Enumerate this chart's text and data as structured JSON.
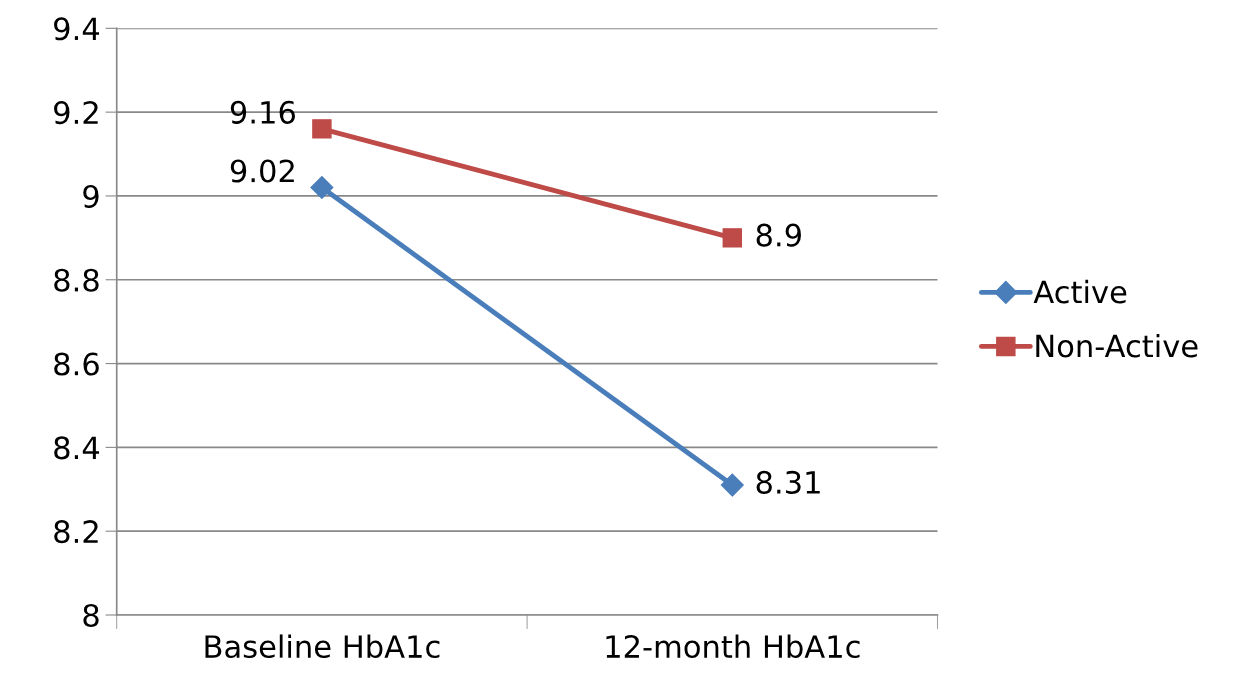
{
  "chart_data": {
    "type": "line",
    "categories": [
      "Baseline HbA1c",
      "12-month HbA1c"
    ],
    "series": [
      {
        "name": "Active",
        "color": "#4a7ebb",
        "marker": "diamond",
        "values": [
          9.02,
          8.31
        ]
      },
      {
        "name": "Non-Active",
        "color": "#be4b48",
        "marker": "square",
        "values": [
          9.16,
          8.9
        ]
      }
    ],
    "ylim": [
      8,
      9.4
    ],
    "yticks": [
      8,
      8.2,
      8.4,
      8.6,
      8.8,
      9,
      9.2,
      9.4
    ],
    "grid": "y",
    "legend": "right",
    "data_labels": true,
    "line_style": "solid"
  }
}
